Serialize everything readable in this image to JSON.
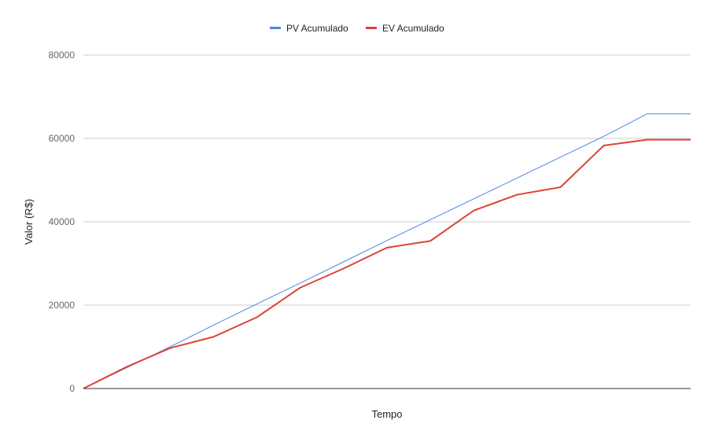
{
  "chart_data": {
    "type": "line",
    "title": "",
    "xlabel": "Tempo",
    "ylabel": "Valor (R$)",
    "ylim": [
      0,
      80000
    ],
    "yticks": [
      0,
      20000,
      40000,
      60000,
      80000
    ],
    "ytick_labels": [
      "0",
      "20000",
      "40000",
      "60000",
      "80000"
    ],
    "grid": true,
    "legend_position": "top-center",
    "x": [
      0,
      1,
      2,
      3,
      4,
      5,
      6,
      7,
      8,
      9,
      10,
      11,
      12,
      13,
      14
    ],
    "series": [
      {
        "name": "PV Acumulado",
        "color": "#4a86e8",
        "values": [
          0,
          5000,
          10000,
          15200,
          20300,
          25300,
          30400,
          35500,
          40500,
          45500,
          50500,
          55500,
          60500,
          65900,
          65900
        ]
      },
      {
        "name": "EV Acumulado",
        "color": "#db4437",
        "values": [
          0,
          5200,
          9700,
          12400,
          17100,
          24200,
          28800,
          33800,
          35400,
          42700,
          46500,
          48300,
          58300,
          59700,
          59700
        ]
      }
    ],
    "x_points": [
      [
        0,
        5200,
        9700,
        12400,
        17100,
        24200,
        28800,
        33800,
        35400,
        42700,
        46500,
        48300,
        58300,
        59700
      ]
    ]
  }
}
